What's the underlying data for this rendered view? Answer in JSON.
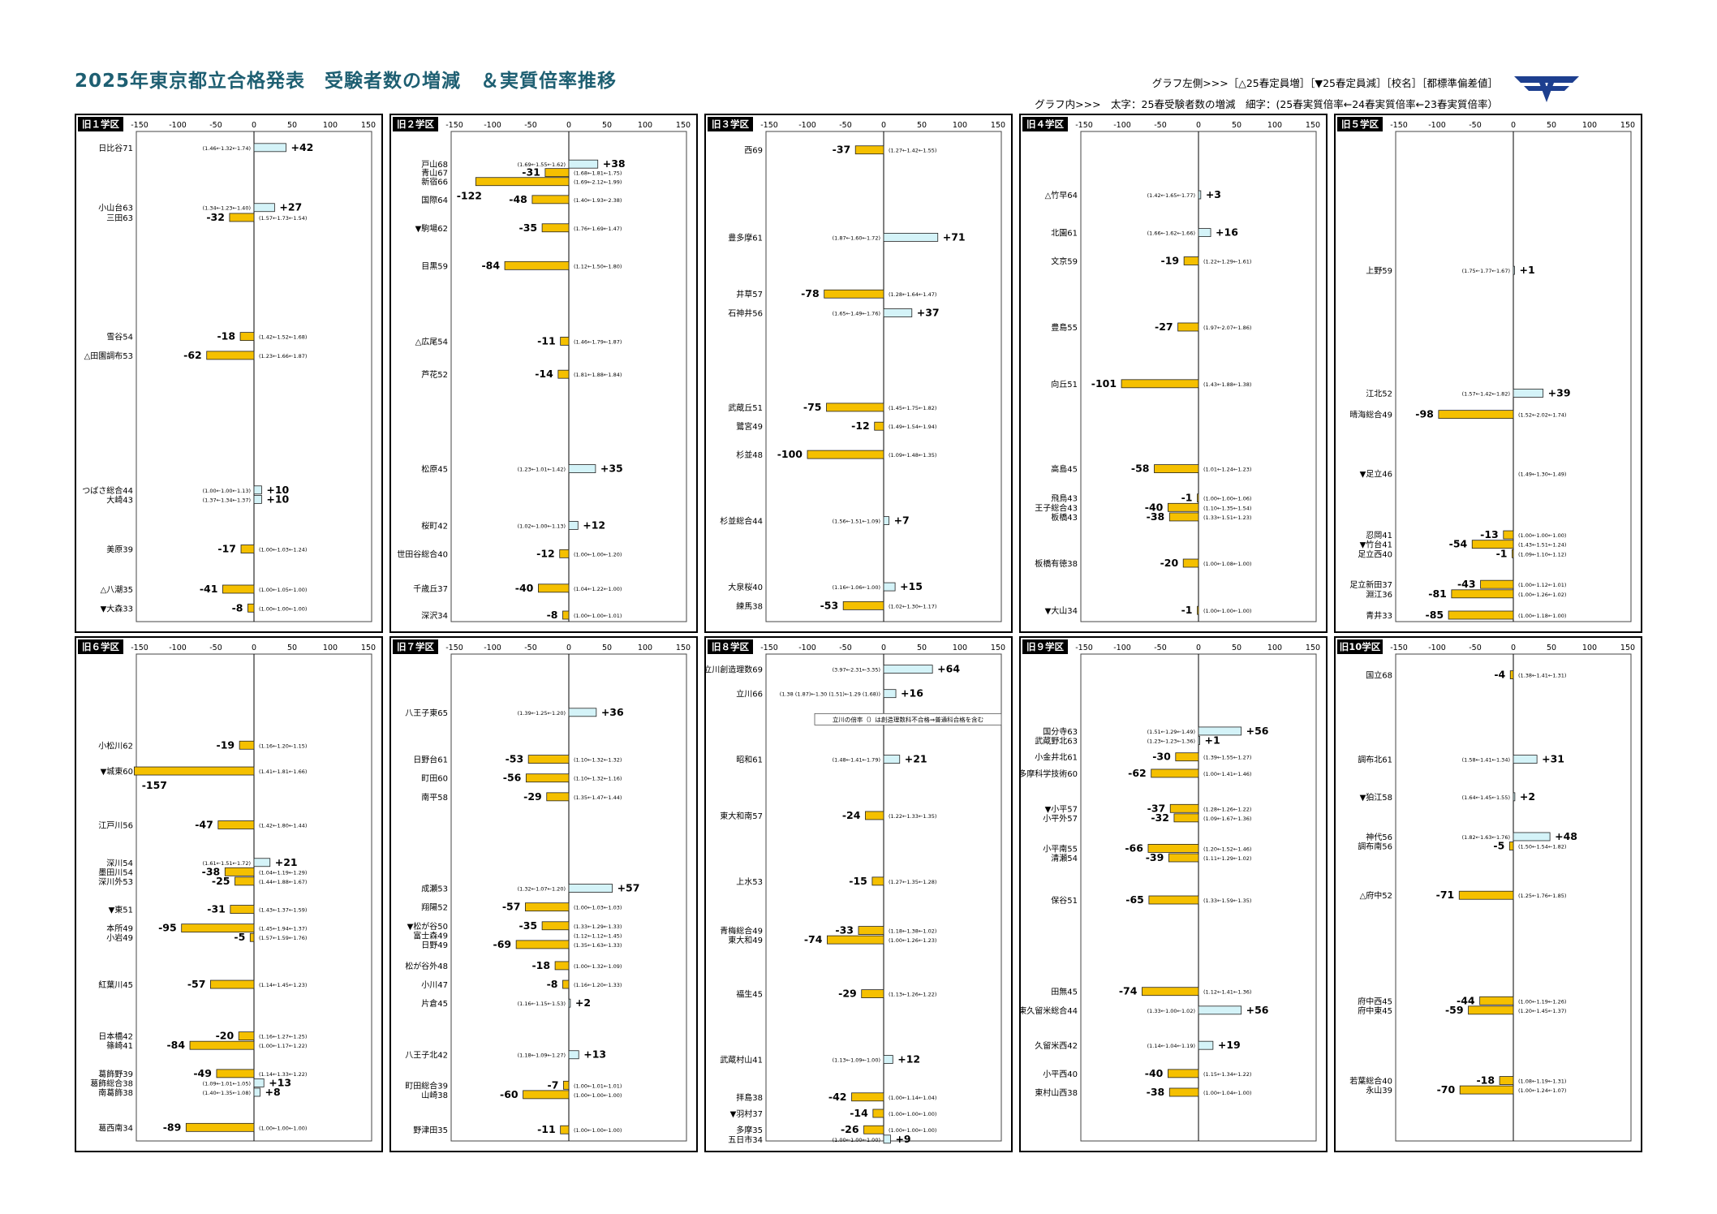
{
  "header": {
    "title": "2025年東京都立合格発表　受験者数の増減　＆実質倍率推移",
    "legend_line1": "グラフ左側>>>［△25春定員増］［▼25春定員減］［校名］［都標準偏差値］",
    "legend_line2": "グラフ内>>>　太字：25春受験者数の増減　細字：(25春実質倍率←24春実質倍率←23春実質倍率）"
  },
  "colors": {
    "increase": "#d4f3f8",
    "decrease": "#f5c000",
    "title": "#1e5f72",
    "logo": "#1d3f8f"
  },
  "chart_data": [
    {
      "type": "bar",
      "district": "旧１学区",
      "x_ticks": [
        -150,
        -100,
        -50,
        0,
        50,
        100,
        150
      ],
      "xlim": [
        -150,
        150
      ],
      "schools": [
        {
          "name": "日比谷71",
          "value": 42,
          "ratio": "(1.46←1.32←1.74)",
          "y": 0.01
        },
        {
          "name": "小山台63",
          "value": 27,
          "ratio": "(1.34←1.23←1.40)",
          "y": 0.137
        },
        {
          "name": "三田63",
          "value": -32,
          "ratio": "(1.57←1.73←1.54)",
          "y": 0.158
        },
        {
          "name": "雪谷54",
          "value": -18,
          "ratio": "(1.42←1.52←1.68)",
          "y": 0.41
        },
        {
          "name": "△田園調布53",
          "value": -62,
          "ratio": "(1.23←1.66←1.87)",
          "y": 0.45
        },
        {
          "name": "つばさ総合44",
          "value": 10,
          "ratio": "(1.00←1.00←1.13)",
          "y": 0.735
        },
        {
          "name": "大崎43",
          "value": 10,
          "ratio": "(1.37←1.34←1.37)",
          "y": 0.755
        },
        {
          "name": "美原39",
          "value": -17,
          "ratio": "(1.00←1.03←1.24)",
          "y": 0.86
        },
        {
          "name": "△八潮35",
          "value": -41,
          "ratio": "(1.00←1.05←1.00)",
          "y": 0.945
        },
        {
          "name": "▼大森33",
          "value": -8,
          "ratio": "(1.00←1.00←1.00)",
          "y": 0.985
        }
      ]
    },
    {
      "type": "bar",
      "district": "旧２学区",
      "x_ticks": [
        -150,
        -100,
        -50,
        0,
        50,
        100,
        150
      ],
      "xlim": [
        -150,
        150
      ],
      "schools": [
        {
          "name": "戸山68",
          "value": 38,
          "ratio": "(1.69←1.55←1.62)",
          "y": 0.045
        },
        {
          "name": "青山67",
          "value": -31,
          "ratio": "(1.68←1.81←1.75)",
          "y": 0.063
        },
        {
          "name": "新宿66",
          "value": -122,
          "ratio": "(1.69←2.12←1.99)",
          "y": 0.082
        },
        {
          "name": "国際64",
          "value": -48,
          "ratio": "(1.40←1.93←2.38)",
          "y": 0.12
        },
        {
          "name": "▼駒場62",
          "value": -35,
          "ratio": "(1.76←1.69←1.47)",
          "y": 0.18
        },
        {
          "name": "目黒59",
          "value": -84,
          "ratio": "(1.12←1.50←1.80)",
          "y": 0.26
        },
        {
          "name": "△広尾54",
          "value": -11,
          "ratio": "(1.46←1.79←1.87)",
          "y": 0.42
        },
        {
          "name": "芦花52",
          "value": -14,
          "ratio": "(1.81←1.88←1.84)",
          "y": 0.49
        },
        {
          "name": "松原45",
          "value": 35,
          "ratio": "(1.23←1.01←1.42)",
          "y": 0.69
        },
        {
          "name": "桜町42",
          "value": 12,
          "ratio": "(1.02←1.00←1.13)",
          "y": 0.81
        },
        {
          "name": "世田谷総合40",
          "value": -12,
          "ratio": "(1.00←1.00←1.20)",
          "y": 0.87
        },
        {
          "name": "千歳丘37",
          "value": -40,
          "ratio": "(1.04←1.22←1.00)",
          "y": 0.943
        },
        {
          "name": "深沢34",
          "value": -8,
          "ratio": "(1.00←1.00←1.01)",
          "y": 1.0
        }
      ]
    },
    {
      "type": "bar",
      "district": "旧３学区",
      "x_ticks": [
        -150,
        -100,
        -50,
        0,
        50,
        100,
        150
      ],
      "xlim": [
        -150,
        150
      ],
      "schools": [
        {
          "name": "西69",
          "value": -37,
          "ratio": "(1.27←1.42←1.55)",
          "y": 0.015
        },
        {
          "name": "豊多摩61",
          "value": 71,
          "ratio": "(1.87←1.60←1.72)",
          "y": 0.2
        },
        {
          "name": "井草57",
          "value": -78,
          "ratio": "(1.28←1.64←1.47)",
          "y": 0.32
        },
        {
          "name": "石神井56",
          "value": 37,
          "ratio": "(1.65←1.49←1.76)",
          "y": 0.36
        },
        {
          "name": "武蔵丘51",
          "value": -75,
          "ratio": "(1.45←1.75←1.82)",
          "y": 0.56
        },
        {
          "name": "鷺宮49",
          "value": -12,
          "ratio": "(1.49←1.54←1.94)",
          "y": 0.6
        },
        {
          "name": "杉並48",
          "value": -100,
          "ratio": "(1.09←1.48←1.35)",
          "y": 0.66
        },
        {
          "name": "杉並総合44",
          "value": 7,
          "ratio": "(1.56←1.51←1.09)",
          "y": 0.8
        },
        {
          "name": "大泉桜40",
          "value": 15,
          "ratio": "(1.16←1.06←1.00)",
          "y": 0.94
        },
        {
          "name": "練馬38",
          "value": -53,
          "ratio": "(1.02←1.30←1.17)",
          "y": 0.98
        }
      ]
    },
    {
      "type": "bar",
      "district": "旧４学区",
      "x_ticks": [
        -150,
        -100,
        -50,
        0,
        50,
        100,
        150
      ],
      "xlim": [
        -150,
        150
      ],
      "schools": [
        {
          "name": "△竹早64",
          "value": 3,
          "ratio": "(1.42←1.65←1.77)",
          "y": 0.11
        },
        {
          "name": "北園61",
          "value": 16,
          "ratio": "(1.66←1.62←1.66)",
          "y": 0.19
        },
        {
          "name": "文京59",
          "value": -19,
          "ratio": "(1.22←1.29←1.61)",
          "y": 0.25
        },
        {
          "name": "豊島55",
          "value": -27,
          "ratio": "(1.97←2.07←1.86)",
          "y": 0.39
        },
        {
          "name": "向丘51",
          "value": -101,
          "ratio": "(1.43←1.88←1.38)",
          "y": 0.51
        },
        {
          "name": "高島45",
          "value": -58,
          "ratio": "(1.01←1.24←1.23)",
          "y": 0.69
        },
        {
          "name": "飛鳥43",
          "value": -1,
          "ratio": "(1.00←1.00←1.06)",
          "y": 0.752
        },
        {
          "name": "王子総合43",
          "value": -40,
          "ratio": "(1.10←1.35←1.54)",
          "y": 0.772
        },
        {
          "name": "板橋43",
          "value": -38,
          "ratio": "(1.33←1.51←1.23)",
          "y": 0.792
        },
        {
          "name": "板橋有徳38",
          "value": -20,
          "ratio": "(1.00←1.08←1.00)",
          "y": 0.89
        },
        {
          "name": "▼大山34",
          "value": -1,
          "ratio": "(1.00←1.00←1.00)",
          "y": 0.99
        }
      ]
    },
    {
      "type": "bar",
      "district": "旧５学区",
      "x_ticks": [
        -150,
        -100,
        -50,
        0,
        50,
        100,
        150
      ],
      "xlim": [
        -150,
        150
      ],
      "schools": [
        {
          "name": "上野59",
          "value": 1,
          "ratio": "(1.75←1.77←1.67)",
          "y": 0.27
        },
        {
          "name": "江北52",
          "value": 39,
          "ratio": "(1.57←1.42←1.82)",
          "y": 0.53
        },
        {
          "name": "晴海総合49",
          "value": -98,
          "ratio": "(1.52←2.02←1.74)",
          "y": 0.575
        },
        {
          "name": "▼足立46",
          "value": null,
          "ratio": "(1.49←1.30←1.49)",
          "y": 0.7
        },
        {
          "name": "忍岡41",
          "value": -13,
          "ratio": "(1.00←1.00←1.00)",
          "y": 0.83
        },
        {
          "name": "▼竹台41",
          "value": -54,
          "ratio": "(1.43←1.51←1.24)",
          "y": 0.85
        },
        {
          "name": "足立西40",
          "value": -1,
          "ratio": "(1.09←1.10←1.12)",
          "y": 0.87
        },
        {
          "name": "足立新田37",
          "value": -43,
          "ratio": "(1.00←1.12←1.01)",
          "y": 0.935
        },
        {
          "name": "淵江36",
          "value": -81,
          "ratio": "(1.00←1.26←1.02)",
          "y": 0.955
        },
        {
          "name": "青井33",
          "value": -85,
          "ratio": "(1.00←1.18←1.00)",
          "y": 1.0
        }
      ]
    },
    {
      "type": "bar",
      "district": "旧６学区",
      "x_ticks": [
        -150,
        -100,
        -50,
        0,
        50,
        100,
        150
      ],
      "xlim": [
        -150,
        150
      ],
      "schools": [
        {
          "name": "小松川62",
          "value": -19,
          "ratio": "(1.16←1.20←1.15)",
          "y": 0.17
        },
        {
          "name": "▼城東60",
          "value": -157,
          "ratio": "(1.41←1.81←1.66)",
          "y": 0.225
        },
        {
          "name": "江戸川56",
          "value": -47,
          "ratio": "(1.42←1.80←1.44)",
          "y": 0.34
        },
        {
          "name": "深川54",
          "value": 21,
          "ratio": "(1.61←1.51←1.72)",
          "y": 0.42
        },
        {
          "name": "墨田川54",
          "value": -38,
          "ratio": "(1.04←1.19←1.29)",
          "y": 0.44
        },
        {
          "name": "深川外53",
          "value": -25,
          "ratio": "(1.44←1.88←1.67)",
          "y": 0.46
        },
        {
          "name": "▼東51",
          "value": -31,
          "ratio": "(1.43←1.37←1.59)",
          "y": 0.52
        },
        {
          "name": "本所49",
          "value": -95,
          "ratio": "(1.45←1.94←1.37)",
          "y": 0.56
        },
        {
          "name": "小岩49",
          "value": -5,
          "ratio": "(1.57←1.59←1.76)",
          "y": 0.58
        },
        {
          "name": "紅葉川45",
          "value": -57,
          "ratio": "(1.14←1.45←1.23)",
          "y": 0.68
        },
        {
          "name": "日本橋42",
          "value": -20,
          "ratio": "(1.16←1.27←1.25)",
          "y": 0.79
        },
        {
          "name": "篠崎41",
          "value": -84,
          "ratio": "(1.00←1.17←1.22)",
          "y": 0.81
        },
        {
          "name": "葛飾野39",
          "value": -49,
          "ratio": "(1.14←1.33←1.22)",
          "y": 0.87
        },
        {
          "name": "葛飾総合38",
          "value": 13,
          "ratio": "(1.09←1.01←1.05)",
          "y": 0.89
        },
        {
          "name": "南葛飾38",
          "value": 8,
          "ratio": "(1.40←1.35←1.08)",
          "y": 0.91
        },
        {
          "name": "葛西南34",
          "value": -89,
          "ratio": "(1.00←1.00←1.00)",
          "y": 0.985
        }
      ]
    },
    {
      "type": "bar",
      "district": "旧７学区",
      "x_ticks": [
        -150,
        -100,
        -50,
        0,
        50,
        100,
        150
      ],
      "xlim": [
        -150,
        150
      ],
      "schools": [
        {
          "name": "八王子東65",
          "value": 36,
          "ratio": "(1.39←1.25←1.20)",
          "y": 0.1
        },
        {
          "name": "日野台61",
          "value": -53,
          "ratio": "(1.10←1.32←1.32)",
          "y": 0.2
        },
        {
          "name": "町田60",
          "value": -56,
          "ratio": "(1.10←1.32←1.16)",
          "y": 0.24
        },
        {
          "name": "南平58",
          "value": -29,
          "ratio": "(1.35←1.47←1.44)",
          "y": 0.28
        },
        {
          "name": "成瀬53",
          "value": 57,
          "ratio": "(1.32←1.07←1.20)",
          "y": 0.475
        },
        {
          "name": "翔陽52",
          "value": -57,
          "ratio": "(1.00←1.03←1.03)",
          "y": 0.515
        },
        {
          "name": "▼松が谷50",
          "value": -35,
          "ratio": "(1.33←1.29←1.33)",
          "y": 0.555
        },
        {
          "name": "富士森49",
          "value": null,
          "ratio": "(1.12←1.12←1.45)",
          "y": 0.575
        },
        {
          "name": "日野49",
          "value": -69,
          "ratio": "(1.35←1.63←1.33)",
          "y": 0.595
        },
        {
          "name": "松が谷外48",
          "value": -18,
          "ratio": "(1.00←1.32←1.09)",
          "y": 0.64
        },
        {
          "name": "小川47",
          "value": -8,
          "ratio": "(1.16←1.20←1.33)",
          "y": 0.68
        },
        {
          "name": "片倉45",
          "value": 2,
          "ratio": "(1.16←1.15←1.53)",
          "y": 0.72
        },
        {
          "name": "八王子北42",
          "value": 13,
          "ratio": "(1.18←1.09←1.27)",
          "y": 0.83
        },
        {
          "name": "町田総合39",
          "value": -7,
          "ratio": "(1.00←1.01←1.01)",
          "y": 0.895
        },
        {
          "name": "山崎38",
          "value": -60,
          "ratio": "(1.00←1.00←1.00)",
          "y": 0.915
        },
        {
          "name": "野津田35",
          "value": -11,
          "ratio": "(1.00←1.00←1.00)",
          "y": 0.99
        }
      ]
    },
    {
      "type": "bar",
      "district": "旧８学区",
      "x_ticks": [
        -150,
        -100,
        -50,
        0,
        50,
        100,
        150
      ],
      "xlim": [
        -150,
        150
      ],
      "note": "立川の倍率（）は創造理数科不合格⇒普通科合格を含む",
      "schools": [
        {
          "name": "立川創造理数69",
          "value": 64,
          "ratio": "(3.97←2.31←3.35)",
          "y": 0.008
        },
        {
          "name": "立川66",
          "value": 16,
          "ratio": "(1.38 (1.87)←1.30 (1.51)←1.29 (1.68))",
          "y": 0.06
        },
        {
          "name": "昭和61",
          "value": 21,
          "ratio": "(1.48←1.41←1.79)",
          "y": 0.2
        },
        {
          "name": "東大和南57",
          "value": -24,
          "ratio": "(1.22←1.33←1.35)",
          "y": 0.32
        },
        {
          "name": "上水53",
          "value": -15,
          "ratio": "(1.27←1.35←1.28)",
          "y": 0.46
        },
        {
          "name": "青梅総合49",
          "value": -33,
          "ratio": "(1.18←1.38←1.02)",
          "y": 0.565
        },
        {
          "name": "東大和49",
          "value": -74,
          "ratio": "(1.00←1.26←1.23)",
          "y": 0.585
        },
        {
          "name": "福生45",
          "value": -29,
          "ratio": "(1.13←1.26←1.22)",
          "y": 0.7
        },
        {
          "name": "武蔵村山41",
          "value": 12,
          "ratio": "(1.13←1.09←1.00)",
          "y": 0.84
        },
        {
          "name": "拝島38",
          "value": -42,
          "ratio": "(1.00←1.14←1.04)",
          "y": 0.92
        },
        {
          "name": "▼羽村37",
          "value": -14,
          "ratio": "(1.00←1.00←1.00)",
          "y": 0.955
        },
        {
          "name": "多摩35",
          "value": -26,
          "ratio": "(1.00←1.00←1.00)",
          "y": 0.99
        },
        {
          "name": "五日市34",
          "value": 9,
          "ratio": "(1.00←1.00←1.00)",
          "y": 1.01
        }
      ]
    },
    {
      "type": "bar",
      "district": "旧９学区",
      "x_ticks": [
        -150,
        -100,
        -50,
        0,
        50,
        100,
        150
      ],
      "xlim": [
        -150,
        150
      ],
      "schools": [
        {
          "name": "国分寺63",
          "value": 56,
          "ratio": "(1.51←1.29←1.49)",
          "y": 0.14
        },
        {
          "name": "武蔵野北63",
          "value": 1,
          "ratio": "(1.23←1.23←1.36)",
          "y": 0.16
        },
        {
          "name": "小金井北61",
          "value": -30,
          "ratio": "(1.39←1.55←1.27)",
          "y": 0.195
        },
        {
          "name": "多摩科学技術60",
          "value": -62,
          "ratio": "(1.00←1.41←1.46)",
          "y": 0.23
        },
        {
          "name": "▼小平57",
          "value": -37,
          "ratio": "(1.28←1.26←1.22)",
          "y": 0.305
        },
        {
          "name": "小平外57",
          "value": -32,
          "ratio": "(1.09←1.67←1.36)",
          "y": 0.325
        },
        {
          "name": "小平南55",
          "value": -66,
          "ratio": "(1.20←1.52←1.46)",
          "y": 0.39
        },
        {
          "name": "清瀬54",
          "value": -39,
          "ratio": "(1.11←1.29←1.02)",
          "y": 0.41
        },
        {
          "name": "保谷51",
          "value": -65,
          "ratio": "(1.33←1.59←1.35)",
          "y": 0.5
        },
        {
          "name": "田無45",
          "value": -74,
          "ratio": "(1.12←1.41←1.36)",
          "y": 0.695
        },
        {
          "name": "東久留米総合44",
          "value": 56,
          "ratio": "(1.33←1.00←1.02)",
          "y": 0.735
        },
        {
          "name": "久留米西42",
          "value": 19,
          "ratio": "(1.14←1.04←1.19)",
          "y": 0.81
        },
        {
          "name": "小平西40",
          "value": -40,
          "ratio": "(1.15←1.34←1.22)",
          "y": 0.87
        },
        {
          "name": "東村山西38",
          "value": -38,
          "ratio": "(1.00←1.04←1.00)",
          "y": 0.91
        }
      ]
    },
    {
      "type": "bar",
      "district": "旧10学区",
      "x_ticks": [
        -150,
        -100,
        -50,
        0,
        50,
        100,
        150
      ],
      "xlim": [
        -150,
        150
      ],
      "schools": [
        {
          "name": "国立68",
          "value": -4,
          "ratio": "(1.38←1.41←1.31)",
          "y": 0.02
        },
        {
          "name": "調布北61",
          "value": 31,
          "ratio": "(1.58←1.41←1.34)",
          "y": 0.2
        },
        {
          "name": "▼狛江58",
          "value": 2,
          "ratio": "(1.64←1.45←1.55)",
          "y": 0.28
        },
        {
          "name": "神代56",
          "value": 48,
          "ratio": "(1.82←1.63←1.76)",
          "y": 0.365
        },
        {
          "name": "調布南56",
          "value": -5,
          "ratio": "(1.50←1.54←1.82)",
          "y": 0.385
        },
        {
          "name": "△府中52",
          "value": -71,
          "ratio": "(1.25←1.76←1.85)",
          "y": 0.49
        },
        {
          "name": "府中西45",
          "value": -44,
          "ratio": "(1.00←1.19←1.26)",
          "y": 0.715
        },
        {
          "name": "府中東45",
          "value": -59,
          "ratio": "(1.20←1.45←1.37)",
          "y": 0.735
        },
        {
          "name": "若葉総合40",
          "value": -18,
          "ratio": "(1.08←1.19←1.31)",
          "y": 0.885
        },
        {
          "name": "永山39",
          "value": -70,
          "ratio": "(1.00←1.24←1.07)",
          "y": 0.905
        }
      ]
    }
  ]
}
